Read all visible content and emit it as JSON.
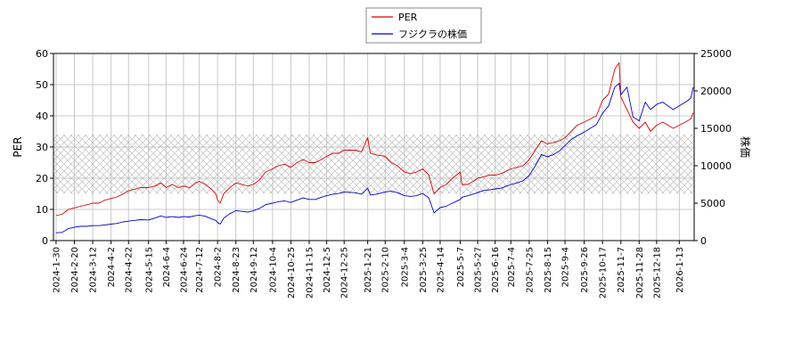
{
  "chart_data": {
    "type": "line",
    "xlabel": "",
    "ylabel_left": "PER",
    "ylabel_right": "株価",
    "y_left_lim": [
      0,
      60
    ],
    "y_right_lim": [
      0,
      25000
    ],
    "y_left_ticks": [
      "0",
      "10",
      "20",
      "30",
      "40",
      "50",
      "60"
    ],
    "y_right_ticks": [
      "0",
      "5000",
      "10000",
      "15000",
      "20000",
      "25000"
    ],
    "x_ticks": [
      "2024-1-30",
      "2024-2-20",
      "2024-3-12",
      "2024-4-2",
      "2024-4-22",
      "2024-5-15",
      "2024-6-4",
      "2024-6-24",
      "2024-7-12",
      "2024-8-2",
      "2024-8-23",
      "2024-9-12",
      "2024-10-4",
      "2024-10-25",
      "2024-11-15",
      "2024-12-5",
      "2024-12-25",
      "2025-1-21",
      "2025-2-10",
      "2025-3-4",
      "2025-3-25",
      "2025-4-14",
      "2025-5-7",
      "2025-5-27",
      "2025-6-16",
      "2025-7-4",
      "2025-7-25",
      "2025-8-15",
      "2025-9-4",
      "2025-9-26",
      "2025-10-17",
      "2025-11-7",
      "2025-11-28",
      "2025-12-18",
      "2026-1-13"
    ],
    "grid": true,
    "legend_position": "top-center",
    "shaded_band_left": [
      15,
      34
    ],
    "series": [
      {
        "name": "PER",
        "axis": "left",
        "color": "#dd0000",
        "points": [
          [
            "2024-1-30",
            8
          ],
          [
            "2024-2-6",
            8.5
          ],
          [
            "2024-2-13",
            10
          ],
          [
            "2024-2-20",
            10.5
          ],
          [
            "2024-2-27",
            11
          ],
          [
            "2024-3-5",
            11.5
          ],
          [
            "2024-3-12",
            12
          ],
          [
            "2024-3-19",
            12
          ],
          [
            "2024-3-26",
            13
          ],
          [
            "2024-4-2",
            13.5
          ],
          [
            "2024-4-9",
            14
          ],
          [
            "2024-4-16",
            15
          ],
          [
            "2024-4-22",
            16
          ],
          [
            "2024-4-29",
            16.5
          ],
          [
            "2024-5-6",
            17
          ],
          [
            "2024-5-15",
            17
          ],
          [
            "2024-5-22",
            17.5
          ],
          [
            "2024-5-29",
            18.5
          ],
          [
            "2024-6-4",
            17
          ],
          [
            "2024-6-11",
            18
          ],
          [
            "2024-6-18",
            17
          ],
          [
            "2024-6-24",
            17.5
          ],
          [
            "2024-7-1",
            17
          ],
          [
            "2024-7-8",
            18.5
          ],
          [
            "2024-7-12",
            19
          ],
          [
            "2024-7-19",
            18
          ],
          [
            "2024-7-26",
            16.5
          ],
          [
            "2024-7-31",
            15
          ],
          [
            "2024-8-2",
            13
          ],
          [
            "2024-8-5",
            12
          ],
          [
            "2024-8-9",
            15
          ],
          [
            "2024-8-16",
            17
          ],
          [
            "2024-8-23",
            18.5
          ],
          [
            "2024-8-30",
            18
          ],
          [
            "2024-9-6",
            17.5
          ],
          [
            "2024-9-12",
            18
          ],
          [
            "2024-9-19",
            19.5
          ],
          [
            "2024-9-26",
            22
          ],
          [
            "2024-10-4",
            23
          ],
          [
            "2024-10-11",
            24
          ],
          [
            "2024-10-18",
            24.5
          ],
          [
            "2024-10-25",
            23.5
          ],
          [
            "2024-11-1",
            25
          ],
          [
            "2024-11-8",
            26
          ],
          [
            "2024-11-15",
            25
          ],
          [
            "2024-11-22",
            25
          ],
          [
            "2024-11-29",
            26
          ],
          [
            "2024-12-5",
            27
          ],
          [
            "2024-12-12",
            28
          ],
          [
            "2024-12-19",
            28
          ],
          [
            "2024-12-25",
            29
          ],
          [
            "2025-1-6",
            29
          ],
          [
            "2025-1-14",
            28.5
          ],
          [
            "2025-1-21",
            33
          ],
          [
            "2025-1-24",
            28
          ],
          [
            "2025-1-31",
            27.5
          ],
          [
            "2025-2-10",
            27
          ],
          [
            "2025-2-17",
            25
          ],
          [
            "2025-2-24",
            24
          ],
          [
            "2025-3-4",
            22
          ],
          [
            "2025-3-11",
            21.5
          ],
          [
            "2025-3-18",
            22
          ],
          [
            "2025-3-25",
            23
          ],
          [
            "2025-4-1",
            21
          ],
          [
            "2025-4-7",
            15
          ],
          [
            "2025-4-14",
            17
          ],
          [
            "2025-4-21",
            18
          ],
          [
            "2025-4-28",
            20
          ],
          [
            "2025-5-7",
            22
          ],
          [
            "2025-5-9",
            18
          ],
          [
            "2025-5-16",
            18
          ],
          [
            "2025-5-27",
            20
          ],
          [
            "2025-6-3",
            20.5
          ],
          [
            "2025-6-10",
            21
          ],
          [
            "2025-6-16",
            21
          ],
          [
            "2025-6-23",
            21.5
          ],
          [
            "2025-7-4",
            23
          ],
          [
            "2025-7-11",
            23.5
          ],
          [
            "2025-7-18",
            24
          ],
          [
            "2025-7-25",
            26
          ],
          [
            "2025-8-1",
            29
          ],
          [
            "2025-8-8",
            32
          ],
          [
            "2025-8-15",
            31
          ],
          [
            "2025-8-22",
            31.5
          ],
          [
            "2025-8-29",
            32
          ],
          [
            "2025-9-4",
            33
          ],
          [
            "2025-9-11",
            35
          ],
          [
            "2025-9-18",
            37
          ],
          [
            "2025-9-26",
            38
          ],
          [
            "2025-10-3",
            39
          ],
          [
            "2025-10-10",
            40
          ],
          [
            "2025-10-17",
            45
          ],
          [
            "2025-10-24",
            47
          ],
          [
            "2025-10-31",
            55
          ],
          [
            "2025-11-5",
            57
          ],
          [
            "2025-11-7",
            46
          ],
          [
            "2025-11-14",
            42
          ],
          [
            "2025-11-21",
            38
          ],
          [
            "2025-11-28",
            36
          ],
          [
            "2025-12-5",
            38
          ],
          [
            "2025-12-11",
            35
          ],
          [
            "2025-12-18",
            37
          ],
          [
            "2025-12-25",
            38
          ],
          [
            "2026-1-6",
            36
          ],
          [
            "2026-1-13",
            37
          ],
          [
            "2026-1-20",
            38
          ],
          [
            "2026-1-26",
            39
          ],
          [
            "2026-1-29",
            41
          ]
        ]
      },
      {
        "name": "フジクラの株価",
        "axis": "right",
        "color": "#0000cc",
        "points": [
          [
            "2024-1-30",
            1050
          ],
          [
            "2024-2-6",
            1100
          ],
          [
            "2024-2-13",
            1600
          ],
          [
            "2024-2-20",
            1800
          ],
          [
            "2024-2-27",
            1900
          ],
          [
            "2024-3-5",
            1900
          ],
          [
            "2024-3-12",
            2000
          ],
          [
            "2024-3-19",
            2000
          ],
          [
            "2024-3-26",
            2100
          ],
          [
            "2024-4-2",
            2200
          ],
          [
            "2024-4-9",
            2300
          ],
          [
            "2024-4-16",
            2500
          ],
          [
            "2024-4-22",
            2600
          ],
          [
            "2024-4-29",
            2700
          ],
          [
            "2024-5-6",
            2800
          ],
          [
            "2024-5-15",
            2750
          ],
          [
            "2024-5-22",
            3000
          ],
          [
            "2024-5-29",
            3300
          ],
          [
            "2024-6-4",
            3100
          ],
          [
            "2024-6-11",
            3200
          ],
          [
            "2024-6-18",
            3100
          ],
          [
            "2024-6-24",
            3200
          ],
          [
            "2024-7-1",
            3150
          ],
          [
            "2024-7-8",
            3350
          ],
          [
            "2024-7-12",
            3400
          ],
          [
            "2024-7-19",
            3250
          ],
          [
            "2024-7-26",
            2900
          ],
          [
            "2024-7-31",
            2700
          ],
          [
            "2024-8-2",
            2400
          ],
          [
            "2024-8-5",
            2200
          ],
          [
            "2024-8-9",
            3000
          ],
          [
            "2024-8-16",
            3600
          ],
          [
            "2024-8-23",
            4000
          ],
          [
            "2024-8-30",
            3900
          ],
          [
            "2024-9-6",
            3800
          ],
          [
            "2024-9-12",
            4000
          ],
          [
            "2024-9-19",
            4300
          ],
          [
            "2024-9-26",
            4800
          ],
          [
            "2024-10-4",
            5000
          ],
          [
            "2024-10-11",
            5200
          ],
          [
            "2024-10-18",
            5300
          ],
          [
            "2024-10-25",
            5100
          ],
          [
            "2024-11-1",
            5400
          ],
          [
            "2024-11-8",
            5700
          ],
          [
            "2024-11-15",
            5500
          ],
          [
            "2024-11-22",
            5500
          ],
          [
            "2024-11-29",
            5800
          ],
          [
            "2024-12-5",
            6000
          ],
          [
            "2024-12-12",
            6200
          ],
          [
            "2024-12-19",
            6300
          ],
          [
            "2024-12-25",
            6500
          ],
          [
            "2025-1-6",
            6400
          ],
          [
            "2025-1-14",
            6200
          ],
          [
            "2025-1-21",
            7000
          ],
          [
            "2025-1-24",
            6100
          ],
          [
            "2025-1-31",
            6200
          ],
          [
            "2025-2-10",
            6500
          ],
          [
            "2025-2-17",
            6600
          ],
          [
            "2025-2-24",
            6400
          ],
          [
            "2025-3-4",
            6000
          ],
          [
            "2025-3-11",
            5900
          ],
          [
            "2025-3-18",
            6000
          ],
          [
            "2025-3-25",
            6300
          ],
          [
            "2025-4-1",
            5700
          ],
          [
            "2025-4-7",
            3700
          ],
          [
            "2025-4-14",
            4400
          ],
          [
            "2025-4-21",
            4600
          ],
          [
            "2025-4-28",
            5000
          ],
          [
            "2025-5-7",
            5500
          ],
          [
            "2025-5-9",
            5800
          ],
          [
            "2025-5-16",
            6000
          ],
          [
            "2025-5-27",
            6400
          ],
          [
            "2025-6-3",
            6700
          ],
          [
            "2025-6-10",
            6800
          ],
          [
            "2025-6-16",
            6900
          ],
          [
            "2025-6-23",
            7000
          ],
          [
            "2025-7-4",
            7500
          ],
          [
            "2025-7-11",
            7700
          ],
          [
            "2025-7-18",
            8000
          ],
          [
            "2025-7-25",
            8700
          ],
          [
            "2025-8-1",
            10000
          ],
          [
            "2025-8-8",
            11500
          ],
          [
            "2025-8-15",
            11200
          ],
          [
            "2025-8-22",
            11500
          ],
          [
            "2025-8-29",
            12000
          ],
          [
            "2025-9-4",
            12700
          ],
          [
            "2025-9-11",
            13500
          ],
          [
            "2025-9-18",
            14000
          ],
          [
            "2025-9-26",
            14500
          ],
          [
            "2025-10-3",
            15000
          ],
          [
            "2025-10-10",
            15500
          ],
          [
            "2025-10-17",
            17000
          ],
          [
            "2025-10-24",
            18000
          ],
          [
            "2025-10-31",
            20500
          ],
          [
            "2025-11-5",
            21000
          ],
          [
            "2025-11-7",
            19500
          ],
          [
            "2025-11-14",
            20500
          ],
          [
            "2025-11-21",
            16500
          ],
          [
            "2025-11-28",
            16000
          ],
          [
            "2025-12-5",
            18500
          ],
          [
            "2025-12-11",
            17500
          ],
          [
            "2025-12-18",
            18200
          ],
          [
            "2025-12-25",
            18500
          ],
          [
            "2026-1-6",
            17500
          ],
          [
            "2026-1-13",
            18000
          ],
          [
            "2026-1-20",
            18500
          ],
          [
            "2026-1-26",
            19000
          ],
          [
            "2026-1-29",
            20500
          ]
        ]
      }
    ]
  }
}
